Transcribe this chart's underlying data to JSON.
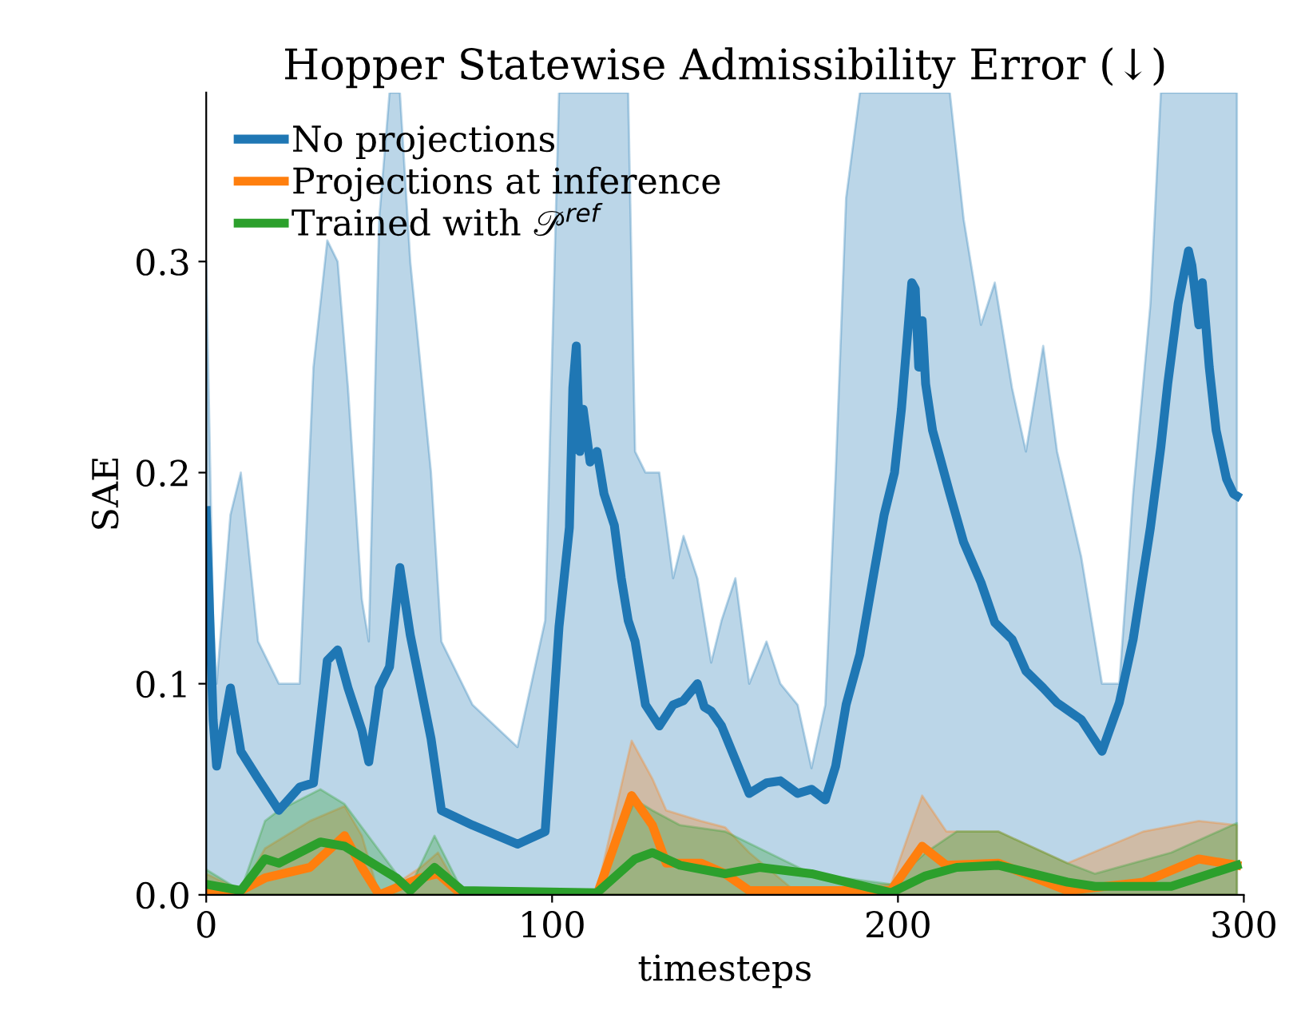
{
  "chart_data": {
    "type": "line",
    "title": "Hopper Statewise Admissibility Error (↓)",
    "xlabel": "timesteps",
    "ylabel": "SAE",
    "xlim": [
      0,
      300
    ],
    "ylim": [
      0,
      0.38
    ],
    "xticks": [
      0,
      100,
      200,
      300
    ],
    "yticks": [
      {
        "value": 0,
        "label": "0.0"
      },
      0.1,
      0.2,
      0.3
    ],
    "grid": false,
    "legend": "top left",
    "line_style": "solid",
    "marker": "none",
    "series": [
      {
        "name": "No projections",
        "color": "#1f77b4",
        "x": [
          0,
          2,
          3,
          7,
          10,
          15,
          21,
          27,
          31,
          35,
          38,
          41,
          45,
          47,
          50,
          53,
          56,
          59,
          65,
          68,
          77,
          90,
          98,
          102,
          105,
          106,
          107,
          108,
          109,
          111,
          113,
          115,
          118,
          120,
          122,
          124,
          127,
          131,
          135,
          138,
          142,
          144,
          146,
          149,
          153,
          157,
          162,
          166,
          171,
          175,
          179,
          182,
          185,
          189,
          193,
          196,
          199,
          201,
          204,
          205,
          206,
          207,
          208,
          210,
          212,
          215,
          219,
          224,
          228,
          233,
          237,
          242,
          246,
          253,
          259,
          264,
          268,
          273,
          276,
          278,
          281,
          284,
          285,
          287,
          288,
          290,
          292,
          295,
          297,
          298
        ],
        "values": [
          0.182,
          0.083,
          0.061,
          0.098,
          0.068,
          0.055,
          0.04,
          0.051,
          0.053,
          0.111,
          0.116,
          0.098,
          0.078,
          0.063,
          0.098,
          0.108,
          0.155,
          0.123,
          0.074,
          0.04,
          0.033,
          0.024,
          0.03,
          0.127,
          0.174,
          0.24,
          0.26,
          0.21,
          0.23,
          0.205,
          0.21,
          0.19,
          0.175,
          0.15,
          0.13,
          0.12,
          0.09,
          0.08,
          0.09,
          0.092,
          0.1,
          0.089,
          0.087,
          0.08,
          0.064,
          0.048,
          0.053,
          0.054,
          0.048,
          0.05,
          0.045,
          0.061,
          0.09,
          0.114,
          0.152,
          0.18,
          0.2,
          0.23,
          0.29,
          0.287,
          0.25,
          0.272,
          0.242,
          0.22,
          0.208,
          0.19,
          0.167,
          0.148,
          0.129,
          0.121,
          0.106,
          0.098,
          0.091,
          0.083,
          0.068,
          0.091,
          0.121,
          0.174,
          0.212,
          0.242,
          0.28,
          0.305,
          0.298,
          0.27,
          0.29,
          0.25,
          0.22,
          0.197,
          0.19,
          0.189
        ],
        "upper": [
          0.3,
          0.13,
          0.1,
          0.18,
          0.2,
          0.12,
          0.1,
          0.1,
          0.25,
          0.31,
          0.3,
          0.24,
          0.14,
          0.12,
          0.32,
          0.38,
          0.38,
          0.3,
          0.2,
          0.12,
          0.09,
          0.07,
          0.13,
          0.38,
          0.38,
          0.38,
          0.38,
          0.38,
          0.38,
          0.38,
          0.38,
          0.38,
          0.38,
          0.38,
          0.38,
          0.21,
          0.2,
          0.2,
          0.15,
          0.17,
          0.15,
          0.13,
          0.11,
          0.13,
          0.15,
          0.1,
          0.12,
          0.1,
          0.09,
          0.06,
          0.09,
          0.2,
          0.33,
          0.38,
          0.38,
          0.38,
          0.38,
          0.38,
          0.38,
          0.38,
          0.38,
          0.38,
          0.38,
          0.38,
          0.38,
          0.38,
          0.32,
          0.27,
          0.29,
          0.24,
          0.21,
          0.26,
          0.21,
          0.16,
          0.1,
          0.1,
          0.19,
          0.28,
          0.38,
          0.38,
          0.38,
          0.38,
          0.38,
          0.38,
          0.38,
          0.38,
          0.38,
          0.38,
          0.38,
          0.38
        ],
        "lower": [
          0,
          0,
          0,
          0,
          0,
          0,
          0,
          0,
          0,
          0,
          0,
          0,
          0,
          0,
          0,
          0,
          0,
          0,
          0,
          0,
          0,
          0,
          0,
          0,
          0,
          0,
          0,
          0,
          0,
          0,
          0,
          0,
          0,
          0,
          0,
          0,
          0,
          0,
          0,
          0,
          0,
          0,
          0,
          0,
          0,
          0,
          0,
          0,
          0,
          0,
          0,
          0,
          0,
          0,
          0,
          0,
          0,
          0,
          0,
          0,
          0,
          0,
          0,
          0,
          0,
          0,
          0,
          0,
          0,
          0,
          0,
          0,
          0,
          0,
          0,
          0,
          0,
          0,
          0,
          0,
          0,
          0,
          0,
          0,
          0,
          0,
          0,
          0,
          0,
          0
        ]
      },
      {
        "name": "Projections at inference",
        "color": "#ff7f0e",
        "x": [
          0,
          10,
          17,
          30,
          40,
          45,
          50,
          62,
          67,
          74,
          113,
          123,
          129,
          133,
          143,
          150,
          157,
          170,
          198,
          207,
          214,
          229,
          249,
          271,
          287,
          298
        ],
        "values": [
          0.002,
          0.002,
          0.008,
          0.013,
          0.028,
          0.013,
          0,
          0.008,
          0.01,
          0,
          0,
          0.047,
          0.033,
          0.015,
          0.015,
          0.01,
          0.002,
          0.002,
          0.002,
          0.023,
          0.014,
          0.015,
          0.002,
          0.006,
          0.017,
          0.014
        ],
        "upper": [
          0.01,
          0.002,
          0.022,
          0.035,
          0.042,
          0.028,
          0,
          0.013,
          0.02,
          0,
          0.002,
          0.073,
          0.055,
          0.04,
          0.035,
          0.032,
          0.02,
          0.002,
          0.005,
          0.047,
          0.03,
          0.03,
          0.015,
          0.03,
          0.035,
          0.033
        ],
        "lower": [
          0,
          0,
          0,
          0,
          0,
          0,
          0,
          0,
          0,
          0,
          0,
          0,
          0,
          0,
          0,
          0,
          0,
          0,
          0,
          0,
          0,
          0,
          0,
          0,
          0,
          0
        ]
      },
      {
        "name": "Trained with 𝒫$^{ref}$",
        "color": "#2ca02c",
        "x": [
          0,
          10,
          17,
          21,
          33,
          40,
          55,
          59,
          66,
          74,
          113,
          124,
          129,
          137,
          150,
          160,
          175,
          198,
          208,
          217,
          229,
          249,
          257,
          279,
          298
        ],
        "values": [
          0.005,
          0.002,
          0.017,
          0.015,
          0.025,
          0.023,
          0.008,
          0.002,
          0.013,
          0.002,
          0.001,
          0.017,
          0.02,
          0.014,
          0.01,
          0.013,
          0.01,
          0.001,
          0.009,
          0.013,
          0.014,
          0.006,
          0.004,
          0.004,
          0.014
        ],
        "upper": [
          0.012,
          0.002,
          0.035,
          0.04,
          0.05,
          0.043,
          0.01,
          0.004,
          0.028,
          0.002,
          0.002,
          0.045,
          0.04,
          0.033,
          0.03,
          0.022,
          0.01,
          0.005,
          0.02,
          0.03,
          0.03,
          0.015,
          0.01,
          0.02,
          0.034
        ],
        "lower": [
          0,
          0,
          0,
          0,
          0,
          0,
          0,
          0,
          0,
          0,
          0,
          0,
          0,
          0,
          0,
          0,
          0,
          0,
          0,
          0,
          0,
          0,
          0,
          0,
          0
        ]
      }
    ]
  }
}
